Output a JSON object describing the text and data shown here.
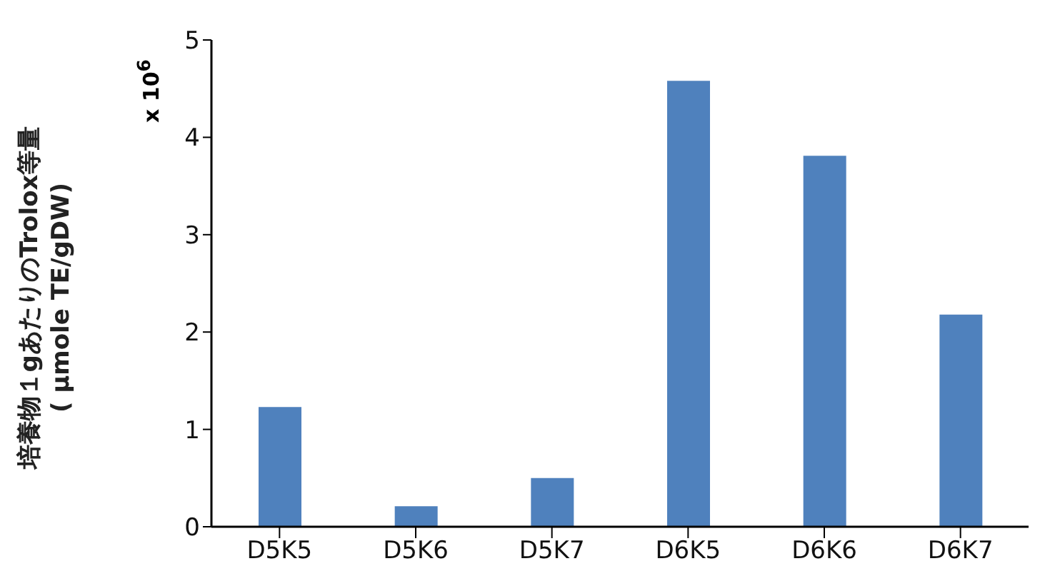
{
  "chart_data": {
    "type": "bar",
    "ylabel": "培養物１gあたりのTrolox等量\n( µmole TE/gDW)",
    "categories": [
      "D5K5",
      "D5K6",
      "D5K7",
      "D6K5",
      "D6K6",
      "D6K7"
    ],
    "values": [
      1.23,
      0.21,
      0.5,
      4.58,
      3.81,
      2.18
    ],
    "color": "#4f81bd",
    "ylim": [
      0,
      5
    ],
    "yticks": [
      0,
      1,
      2,
      3,
      4,
      5
    ],
    "annotations": [
      "x 10$^{6}$"
    ]
  }
}
